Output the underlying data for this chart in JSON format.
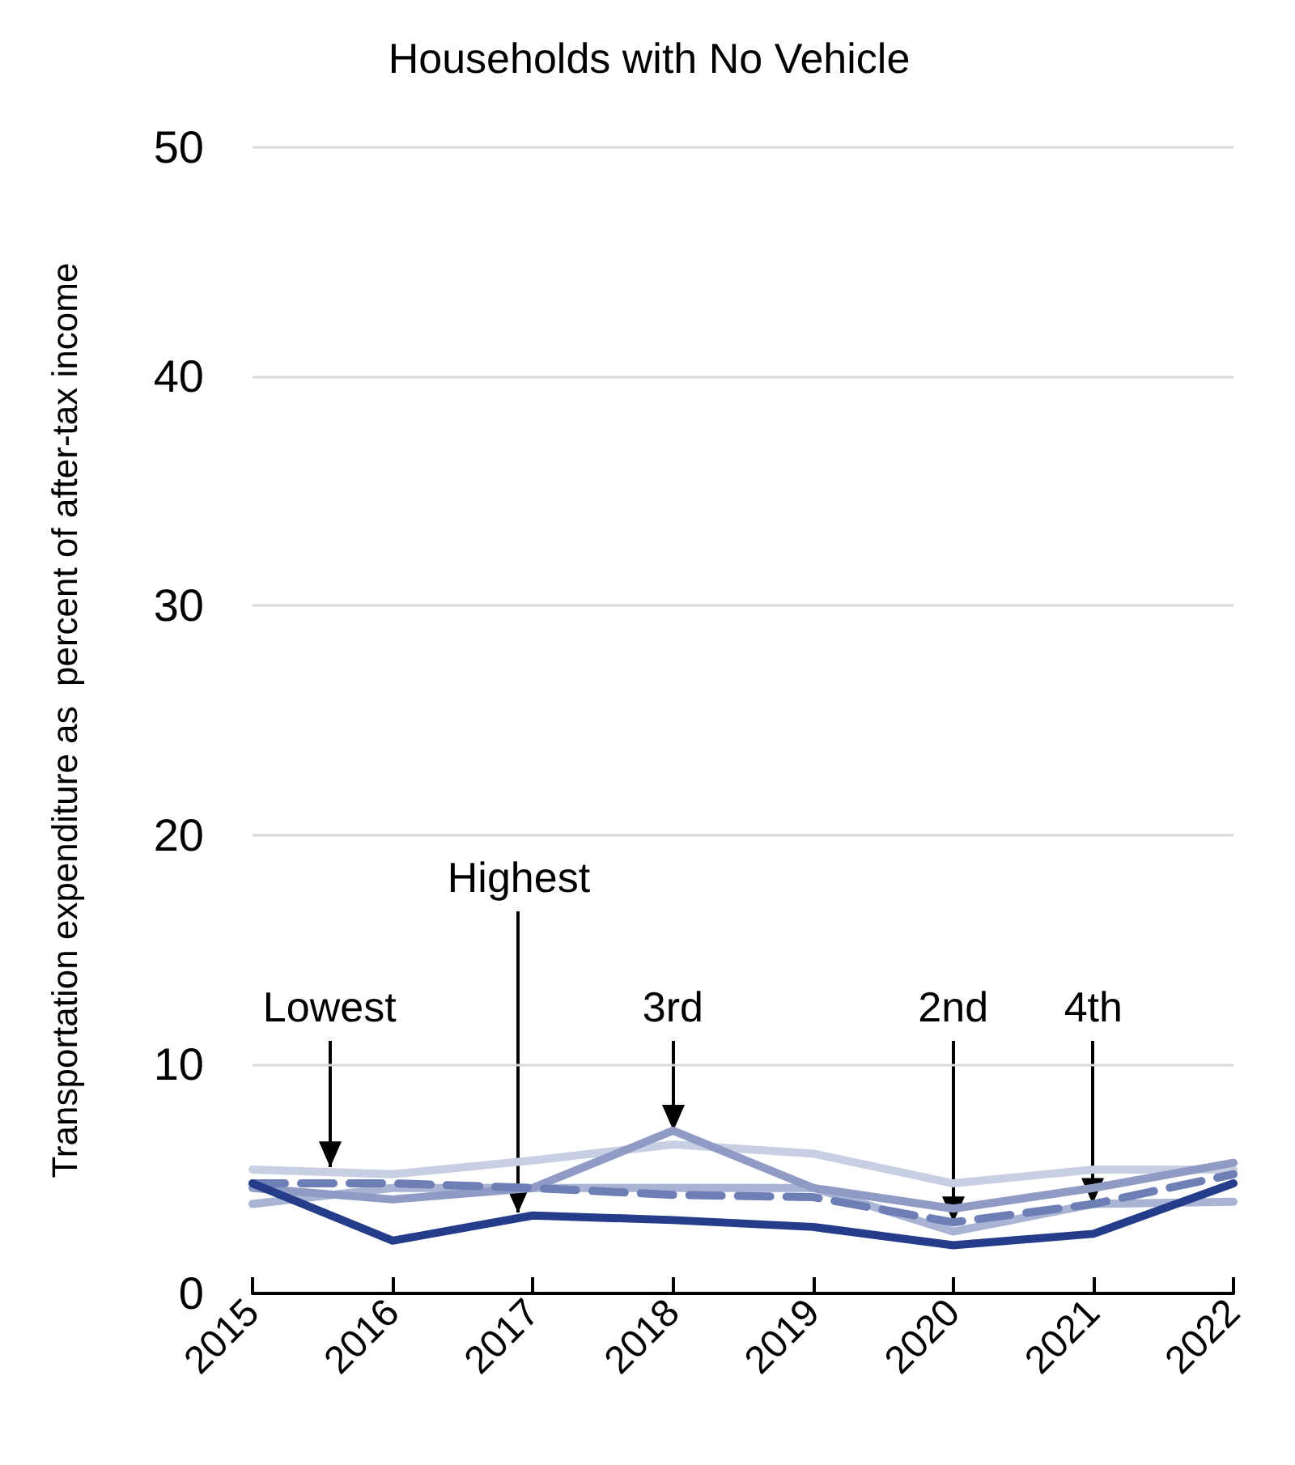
{
  "chart_data": {
    "type": "line",
    "title": "Households with No Vehicle",
    "ylabel": "Transportation expenditure as  percent of after-tax income",
    "x": [
      2015,
      2016,
      2017,
      2018,
      2019,
      2020,
      2021,
      2022
    ],
    "xlim": [
      2015,
      2022
    ],
    "xticks": [
      2015,
      2016,
      2017,
      2018,
      2019,
      2020,
      2021,
      2022
    ],
    "ylim": [
      0,
      50
    ],
    "yticks": [
      0,
      10,
      20,
      30,
      40,
      50
    ],
    "grid": "y",
    "marker": "none",
    "series": [
      {
        "color": "#c9cfe3",
        "values": [
          5.4,
          5.2,
          5.8,
          6.5,
          6.1,
          4.8,
          5.4,
          5.4
        ]
      },
      {
        "color": "#a9b3d3",
        "values": [
          3.9,
          4.6,
          4.6,
          4.6,
          4.6,
          2.7,
          3.9,
          4.0
        ]
      },
      {
        "color": "#8f9bc4",
        "values": [
          4.6,
          4.1,
          4.6,
          7.1,
          4.6,
          3.7,
          4.6,
          5.7
        ]
      },
      {
        "color": "#6e7fb5",
        "line_style": "dashed",
        "values": [
          4.8,
          4.8,
          4.6,
          4.3,
          4.2,
          3.1,
          3.9,
          5.2
        ]
      },
      {
        "color": "#253c8a",
        "values": [
          4.8,
          2.3,
          3.4,
          3.2,
          2.9,
          2.1,
          2.6,
          4.8
        ]
      }
    ],
    "annotations": [
      {
        "text": "Lowest",
        "x": 2015.55,
        "y": 5.5
      },
      {
        "text": "Highest",
        "x": 2016.9,
        "y": 3.5
      },
      {
        "text": "3rd",
        "x": 2018,
        "y": 7.1
      },
      {
        "text": "2nd",
        "x": 2020,
        "y": 3.1
      },
      {
        "text": "4th",
        "x": 2021,
        "y": 3.9
      }
    ]
  }
}
